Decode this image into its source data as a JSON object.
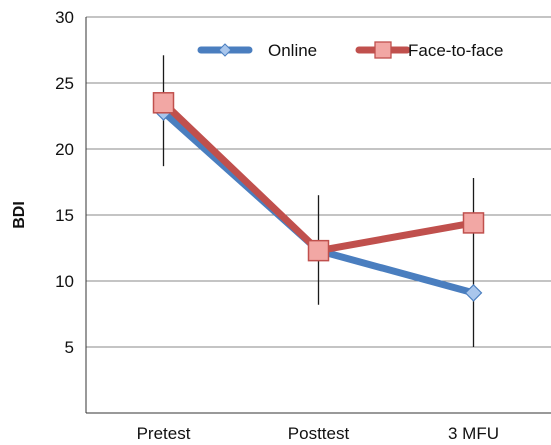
{
  "chart_data": {
    "type": "line",
    "title": "",
    "xlabel": "",
    "ylabel": "BDI",
    "categories": [
      "Pretest",
      "Posttest",
      "3 MFU"
    ],
    "ylim": [
      0,
      30
    ],
    "yticks": [
      "5",
      "10",
      "15",
      "20",
      "25",
      "30"
    ],
    "grid": true,
    "legend_position": "top-right",
    "series": [
      {
        "name": "Online",
        "values": [
          22.8,
          12.3,
          9.1
        ],
        "color": "#4a7ebf",
        "marker": "diamond",
        "marker_fill": "#a9c6ec"
      },
      {
        "name": "Face-to-face",
        "values": [
          23.5,
          12.3,
          14.4
        ],
        "color": "#c0504d",
        "marker": "square",
        "marker_fill": "#f2a7a4"
      }
    ],
    "error_bars": [
      {
        "category": "Pretest",
        "low": 18.7,
        "high": 27.1
      },
      {
        "category": "Posttest",
        "low": 8.2,
        "high": 16.5
      },
      {
        "category": "3 MFU",
        "low": 5.0,
        "high": 17.8
      }
    ]
  }
}
